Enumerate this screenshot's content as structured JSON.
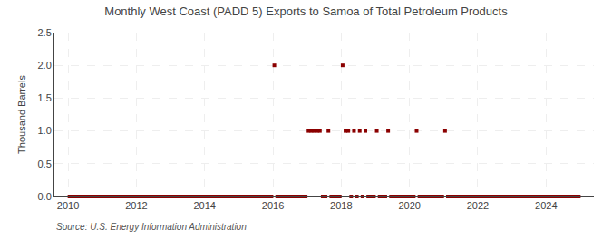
{
  "chart_data": {
    "type": "scatter",
    "title": "Monthly West Coast (PADD 5) Exports to Samoa of Total Petroleum Products",
    "ylabel": "Thousand Barrels",
    "annotation": "Source: U.S. Energy Information Administration",
    "color": "#8b0000",
    "marker": "square",
    "grid": true,
    "xlim": [
      2009.6,
      2025.4
    ],
    "xticks": [
      2010,
      2012,
      2014,
      2016,
      2018,
      2020,
      2022,
      2024
    ],
    "ylim": [
      0,
      2.5
    ],
    "yticks": [
      {
        "value": 0,
        "label": "0.0"
      },
      0.5,
      {
        "value": 1,
        "label": "1.0"
      },
      1.5,
      {
        "value": 2,
        "label": "2.0"
      },
      2.5
    ],
    "x": [
      2010.0416666666667,
      2010.125,
      2010.2083333333333,
      2010.2916666666667,
      2010.375,
      2010.4583333333333,
      2010.5416666666667,
      2010.625,
      2010.7083333333333,
      2010.7916666666667,
      2010.875,
      2010.9583333333333,
      2011.0416666666667,
      2011.125,
      2011.2083333333333,
      2011.2916666666667,
      2011.375,
      2011.4583333333333,
      2011.5416666666667,
      2011.625,
      2011.7083333333333,
      2011.7916666666667,
      2011.875,
      2011.9583333333333,
      2012.0416666666667,
      2012.125,
      2012.2083333333333,
      2012.2916666666667,
      2012.375,
      2012.4583333333333,
      2012.5416666666667,
      2012.625,
      2012.7083333333333,
      2012.7916666666667,
      2012.875,
      2012.9583333333333,
      2013.0416666666667,
      2013.125,
      2013.2083333333333,
      2013.2916666666667,
      2013.375,
      2013.4583333333333,
      2013.5416666666667,
      2013.625,
      2013.7083333333333,
      2013.7916666666667,
      2013.875,
      2013.9583333333333,
      2014.0416666666667,
      2014.125,
      2014.2083333333333,
      2014.2916666666667,
      2014.375,
      2014.4583333333333,
      2014.5416666666667,
      2014.625,
      2014.7083333333333,
      2014.7916666666667,
      2014.875,
      2014.9583333333333,
      2015.0416666666667,
      2015.125,
      2015.2083333333333,
      2015.2916666666667,
      2015.375,
      2015.4583333333333,
      2015.5416666666667,
      2015.625,
      2015.7083333333333,
      2015.7916666666667,
      2015.875,
      2015.9583333333333,
      2016.0416666666667,
      2016.125,
      2016.2083333333333,
      2016.2916666666667,
      2016.375,
      2016.4583333333333,
      2016.5416666666667,
      2016.625,
      2016.7083333333333,
      2016.7916666666667,
      2016.875,
      2016.9583333333333,
      2017.0416666666667,
      2017.125,
      2017.2083333333333,
      2017.2916666666667,
      2017.375,
      2017.4583333333333,
      2017.5416666666667,
      2017.625,
      2017.7083333333333,
      2017.7916666666667,
      2017.875,
      2017.9583333333333,
      2018.0416666666667,
      2018.125,
      2018.2083333333333,
      2018.2916666666667,
      2018.375,
      2018.4583333333333,
      2018.5416666666667,
      2018.625,
      2018.7083333333333,
      2018.7916666666667,
      2018.875,
      2018.9583333333333,
      2019.0416666666667,
      2019.125,
      2019.2083333333333,
      2019.2916666666667,
      2019.375,
      2019.4583333333333,
      2019.5416666666667,
      2019.625,
      2019.7083333333333,
      2019.7916666666667,
      2019.875,
      2019.9583333333333,
      2020.0416666666667,
      2020.125,
      2020.2083333333333,
      2020.2916666666667,
      2020.375,
      2020.4583333333333,
      2020.5416666666667,
      2020.625,
      2020.7083333333333,
      2020.7916666666667,
      2020.875,
      2020.9583333333333,
      2021.0416666666667,
      2021.125,
      2021.2083333333333,
      2021.2916666666667,
      2021.375,
      2021.4583333333333,
      2021.5416666666667,
      2021.625,
      2021.7083333333333,
      2021.7916666666667,
      2021.875,
      2021.9583333333333,
      2022.0416666666667,
      2022.125,
      2022.2083333333333,
      2022.2916666666667,
      2022.375,
      2022.4583333333333,
      2022.5416666666667,
      2022.625,
      2022.7083333333333,
      2022.7916666666667,
      2022.875,
      2022.9583333333333,
      2023.0416666666667,
      2023.125,
      2023.2083333333333,
      2023.2916666666667,
      2023.375,
      2023.4583333333333,
      2023.5416666666667,
      2023.625,
      2023.7083333333333,
      2023.7916666666667,
      2023.875,
      2023.9583333333333,
      2024.0416666666667,
      2024.125,
      2024.2083333333333,
      2024.2916666666667,
      2024.375,
      2024.4583333333333,
      2024.5416666666667,
      2024.625,
      2024.7083333333333,
      2024.7916666666667,
      2024.875,
      2024.9583333333333
    ],
    "values": [
      0,
      0,
      0,
      0,
      0,
      0,
      0,
      0,
      0,
      0,
      0,
      0,
      0,
      0,
      0,
      0,
      0,
      0,
      0,
      0,
      0,
      0,
      0,
      0,
      0,
      0,
      0,
      0,
      0,
      0,
      0,
      0,
      0,
      0,
      0,
      0,
      0,
      0,
      0,
      0,
      0,
      0,
      0,
      0,
      0,
      0,
      0,
      0,
      0,
      0,
      0,
      0,
      0,
      0,
      0,
      0,
      0,
      0,
      0,
      0,
      0,
      0,
      0,
      0,
      0,
      0,
      0,
      0,
      0,
      0,
      0,
      0,
      2,
      0,
      0,
      0,
      0,
      0,
      0,
      0,
      0,
      0,
      0,
      0,
      1,
      1,
      1,
      1,
      1,
      0,
      0,
      1,
      0,
      0,
      0,
      0,
      2,
      1,
      1,
      0,
      1,
      0,
      1,
      0,
      1,
      0,
      0,
      0,
      1,
      0,
      0,
      0,
      1,
      0,
      0,
      0,
      0,
      0,
      0,
      0,
      0,
      0,
      1,
      0,
      0,
      0,
      0,
      0,
      0,
      0,
      0,
      0,
      1,
      0,
      0,
      0,
      0,
      0,
      0,
      0,
      0,
      0,
      0,
      0,
      0,
      0,
      0,
      0,
      0,
      0,
      0,
      0,
      0,
      0,
      0,
      0,
      0,
      0,
      0,
      0,
      0,
      0,
      0,
      0,
      0,
      0,
      0,
      0,
      0,
      0,
      0,
      0,
      0,
      0,
      0,
      0,
      0,
      0,
      0,
      0
    ]
  }
}
